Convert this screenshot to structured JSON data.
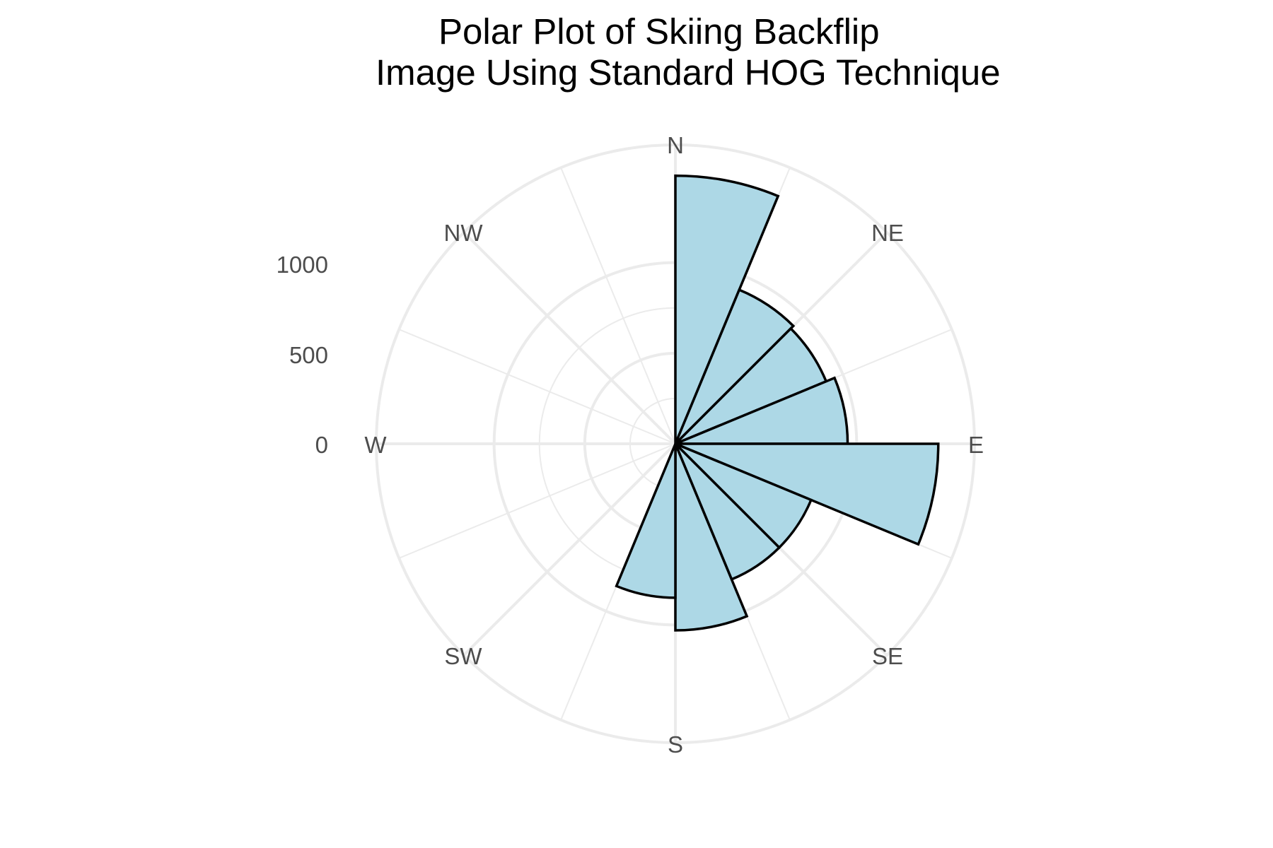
{
  "chart_data": {
    "type": "bar",
    "subtype": "polar-rose",
    "title_lines": [
      "Polar Plot of Skiing Backflip",
      "Image Using Standard HOG Technique"
    ],
    "direction_labels": [
      "N",
      "NE",
      "E",
      "SE",
      "S",
      "SW",
      "W",
      "NW"
    ],
    "radial_ticks": [
      "0",
      "500",
      "1000"
    ],
    "radial_range": [
      0,
      1650
    ],
    "bin_width_deg": 22.5,
    "bin_start_deg": [
      0,
      22.5,
      45,
      67.5,
      90,
      112.5,
      135,
      157.5,
      180,
      202.5,
      225,
      247.5,
      270,
      292.5,
      315,
      337.5
    ],
    "values": [
      1480,
      920,
      900,
      950,
      1450,
      810,
      810,
      1030,
      850,
      0,
      0,
      0,
      0,
      0,
      0,
      0
    ],
    "grid": true,
    "colors": {
      "bar_fill": "#add8e6",
      "bar_stroke": "#000000",
      "grid": "#ebebeb"
    }
  }
}
